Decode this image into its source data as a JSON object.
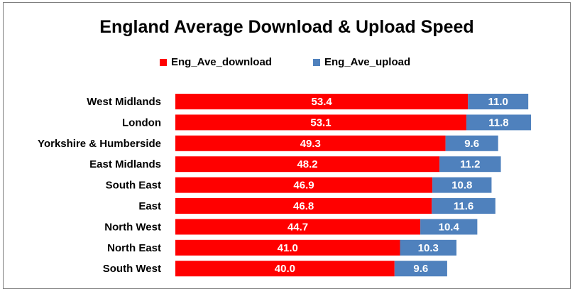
{
  "chart_data": {
    "type": "bar",
    "orientation": "horizontal",
    "stacked": true,
    "title": "England Average Download & Upload Speed",
    "categories": [
      "West Midlands",
      "London",
      "Yorkshire & Humberside",
      "East Midlands",
      "South East",
      "East",
      "North West",
      "North East",
      "South West"
    ],
    "series": [
      {
        "name": "Eng_Ave_download",
        "color": "#ff0000",
        "values": [
          53.4,
          53.1,
          49.3,
          48.2,
          46.9,
          46.8,
          44.7,
          41.0,
          40.0
        ]
      },
      {
        "name": "Eng_Ave_upload",
        "color": "#4f81bd",
        "values": [
          11.0,
          11.8,
          9.6,
          11.2,
          10.8,
          11.6,
          10.4,
          10.3,
          9.6
        ]
      }
    ],
    "legend_position": "top",
    "grid": false,
    "value_labels": true
  }
}
